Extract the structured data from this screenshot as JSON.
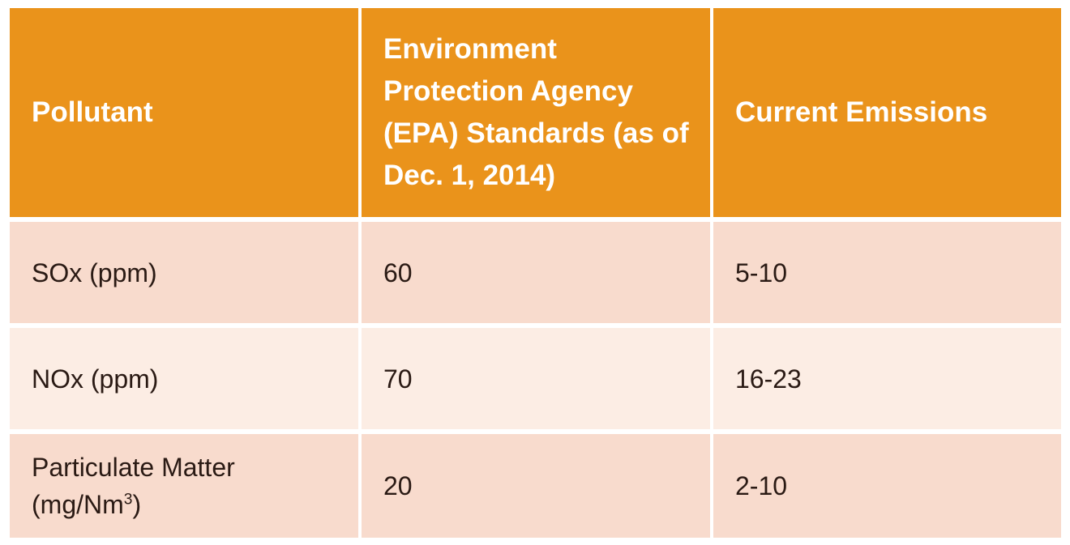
{
  "table": {
    "headers": [
      "Pollutant",
      "Environment Protection Agency (EPA) Standards (as of Dec. 1, 2014)",
      "Current Emissions"
    ],
    "rows": [
      {
        "pollutant": "SOx (ppm)",
        "epa_standard": "60",
        "current": "5-10"
      },
      {
        "pollutant": "NOx (ppm)",
        "epa_standard": "70",
        "current": "16-23"
      },
      {
        "pollutant": "Particulate Matter (mg/Nm",
        "pollutant_superscript": "3",
        "pollutant_suffix": ")",
        "epa_standard": "20",
        "current": "2-10"
      }
    ],
    "colors": {
      "header_bg": "#ea931b",
      "header_text": "#ffffff",
      "row_odd_bg": "#f8dbcd",
      "row_even_bg": "#fcede4",
      "body_text": "#2a1a14"
    }
  }
}
